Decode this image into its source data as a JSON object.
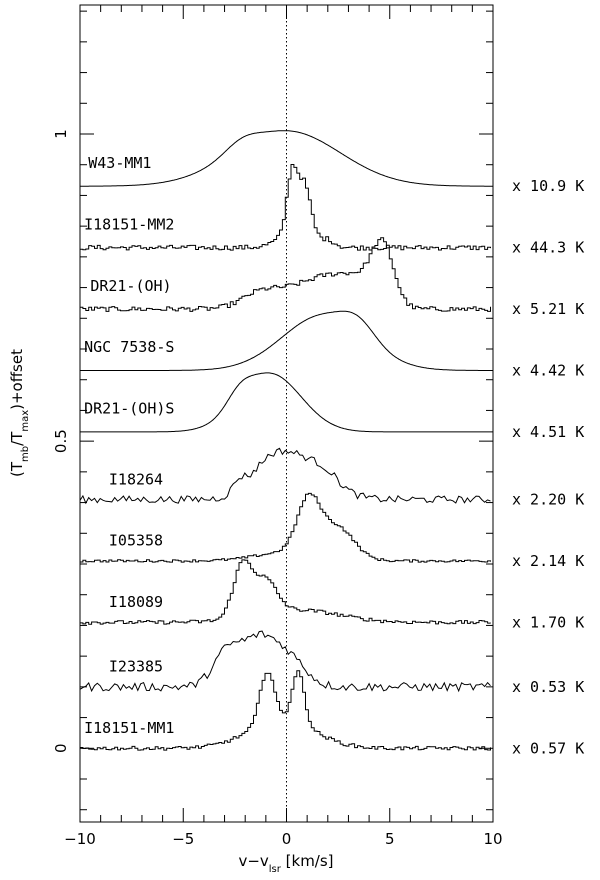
{
  "chart_data": {
    "type": "line",
    "xlabel": "v−v",
    "xlabel_sub": "lsr",
    "xlabel_unit": " [km/s]",
    "ylabel_parts": [
      "(T",
      "mb",
      "/T",
      "max",
      ")+offset"
    ],
    "xlim": [
      -10,
      10
    ],
    "ylim": [
      -0.12,
      1.21
    ],
    "x_ticks": [
      -10,
      -5,
      0,
      5,
      10
    ],
    "x_tick_labels": [
      "−10",
      "−5",
      "0",
      "5",
      "10"
    ],
    "y_ticks": [
      0,
      0.5,
      1
    ],
    "y_tick_labels": [
      "0",
      "0.5",
      "1"
    ],
    "reference_line_x": 0,
    "grid": false,
    "series": [
      {
        "name": "W43-MM1",
        "scale": "x 10.9 K",
        "offset": 0.915,
        "label_x": -9.6,
        "label_dy": 0.02,
        "style": "smooth",
        "noise": 0.0,
        "components": [
          {
            "center": 0.0,
            "amp": 0.09,
            "width": 2.6
          },
          {
            "center": -2.2,
            "amp": 0.015,
            "width": 0.8
          }
        ]
      },
      {
        "name": "I18151-MM2",
        "scale": "x 44.3 K",
        "offset": 0.815,
        "label_x": -9.8,
        "label_dy": 0.02,
        "style": "step",
        "noise": 0.004,
        "components": [
          {
            "center": 0.2,
            "amp": 0.095,
            "width": 0.25
          },
          {
            "center": 0.8,
            "amp": 0.075,
            "width": 0.3
          },
          {
            "center": 0.5,
            "amp": 0.03,
            "width": 0.8
          },
          {
            "center": 2.0,
            "amp": 0.008,
            "width": 0.3
          }
        ]
      },
      {
        "name": "DR21-(OH)",
        "scale": "x 5.21 K",
        "offset": 0.715,
        "label_x": -9.5,
        "label_dy": 0.02,
        "style": "step",
        "noise": 0.004,
        "components": [
          {
            "center": 4.6,
            "amp": 0.095,
            "width": 0.55
          },
          {
            "center": 3.3,
            "amp": 0.045,
            "width": 0.9
          },
          {
            "center": 0.5,
            "amp": 0.035,
            "width": 1.5
          },
          {
            "center": -1.5,
            "amp": 0.015,
            "width": 0.8
          },
          {
            "center": 1.8,
            "amp": 0.02,
            "width": 0.8
          }
        ]
      },
      {
        "name": "NGC 7538-S",
        "scale": "x 4.42 K",
        "offset": 0.615,
        "label_x": -9.8,
        "label_dy": 0.02,
        "style": "smooth",
        "noise": 0.0,
        "components": [
          {
            "center": 1.8,
            "amp": 0.09,
            "width": 2.0
          },
          {
            "center": 3.5,
            "amp": 0.025,
            "width": 0.8
          }
        ]
      },
      {
        "name": "DR21-(OH)S",
        "scale": "x 4.51 K",
        "offset": 0.515,
        "label_x": -9.8,
        "label_dy": 0.02,
        "style": "smooth",
        "noise": 0.0,
        "components": [
          {
            "center": -0.8,
            "amp": 0.095,
            "width": 1.5
          },
          {
            "center": -2.3,
            "amp": 0.02,
            "width": 0.6
          }
        ]
      },
      {
        "name": "I18264",
        "scale": "x 2.20 K",
        "offset": 0.405,
        "label_x": -8.6,
        "label_dy": 0.015,
        "style": "noisy",
        "noise": 0.006,
        "components": [
          {
            "center": 0.4,
            "amp": 0.07,
            "width": 1.4
          },
          {
            "center": -2.3,
            "amp": 0.018,
            "width": 0.3
          },
          {
            "center": -1.0,
            "amp": 0.025,
            "width": 0.8
          },
          {
            "center": 2.0,
            "amp": 0.012,
            "width": 0.6
          }
        ]
      },
      {
        "name": "I05358",
        "scale": "x 2.14 K",
        "offset": 0.305,
        "label_x": -8.6,
        "label_dy": 0.015,
        "style": "step",
        "noise": 0.002,
        "components": [
          {
            "center": 1.0,
            "amp": 0.085,
            "width": 0.55
          },
          {
            "center": 2.4,
            "amp": 0.05,
            "width": 0.8
          },
          {
            "center": 0.2,
            "amp": 0.015,
            "width": 1.6
          }
        ]
      },
      {
        "name": "I18089",
        "scale": "x 1.70 K",
        "offset": 0.205,
        "label_x": -8.6,
        "label_dy": 0.015,
        "style": "step",
        "noise": 0.003,
        "components": [
          {
            "center": -2.2,
            "amp": 0.085,
            "width": 0.45
          },
          {
            "center": -1.1,
            "amp": 0.055,
            "width": 0.55
          },
          {
            "center": 0.5,
            "amp": 0.02,
            "width": 2.0
          }
        ]
      },
      {
        "name": "I23385",
        "scale": "x 0.53 K",
        "offset": 0.1,
        "label_x": -8.6,
        "label_dy": 0.015,
        "style": "noisy",
        "noise": 0.007,
        "components": [
          {
            "center": -1.2,
            "amp": 0.085,
            "width": 1.2
          },
          {
            "center": -3.0,
            "amp": 0.035,
            "width": 0.6
          },
          {
            "center": 0.5,
            "amp": 0.015,
            "width": 0.6
          }
        ]
      },
      {
        "name": "I18151-MM1",
        "scale": "x 0.57 K",
        "offset": 0.0,
        "label_x": -9.8,
        "label_dy": 0.015,
        "style": "step",
        "noise": 0.003,
        "components": [
          {
            "center": -1.0,
            "amp": 0.085,
            "width": 0.35
          },
          {
            "center": 0.5,
            "amp": 0.085,
            "width": 0.3
          },
          {
            "center": -0.3,
            "amp": 0.045,
            "width": 1.6
          }
        ]
      }
    ]
  }
}
